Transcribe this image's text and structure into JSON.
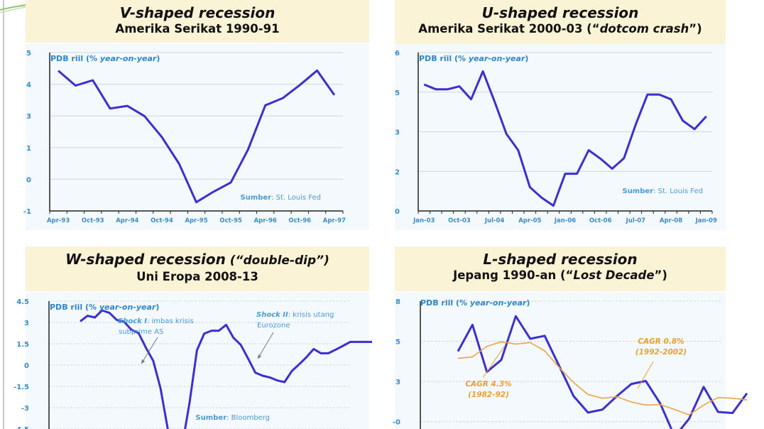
{
  "panels": [
    {
      "title": "V-shaped recession",
      "subtitle": "Amerika Serikat 1990-91"
    },
    {
      "title": "U-shaped recession",
      "subtitle_pre": "Amerika Serikat 2000-03 (“",
      "subtitle_em": "dotcom crash",
      "subtitle_post": "”)"
    },
    {
      "title": "W-shaped recession",
      "title_suffix": " (“double-dip”)",
      "subtitle": "Uni Eropa 2008-13"
    },
    {
      "title": "L-shaped recession",
      "subtitle_pre": "Jepang 1990-an (“",
      "subtitle_em": "Lost Decade",
      "subtitle_post": "”)"
    }
  ],
  "chart_data": [
    {
      "type": "line",
      "ylabel_pre": "PDB riil (% ",
      "ylabel_em": "year-on-year",
      "ylabel_post": ")",
      "ylim": [
        -1,
        5
      ],
      "ytick_labels": [
        "-1",
        "0",
        "1",
        "3",
        "4",
        "5"
      ],
      "categories": [
        "Apr-93",
        "Jul-93",
        "Oct-93",
        "Jan-94",
        "Apr-94",
        "Jul-94",
        "Oct-94",
        "Jan-95",
        "Apr-95",
        "Jul-95",
        "Oct-95",
        "Jan-96",
        "Apr-96",
        "Jul-96",
        "Oct-96",
        "Jan-97",
        "Apr-97"
      ],
      "xtick_labels": [
        "Apr-93",
        "Oct-93",
        "Apr-94",
        "Oct-94",
        "Apr-95",
        "Oct-95",
        "Apr-96",
        "Oct-96",
        "Apr-97"
      ],
      "series": [
        {
          "color": "#3b2fd0",
          "values": [
            4.31,
            3.75,
            3.95,
            2.88,
            2.98,
            2.59,
            1.8,
            0.79,
            -0.67,
            -0.27,
            0.08,
            1.33,
            3.0,
            3.27,
            3.77,
            4.32,
            3.39
          ]
        }
      ],
      "source_label": "Sumber",
      "source": ": St. Louis Fed",
      "grid": true
    },
    {
      "type": "line",
      "ylabel_pre": "PDB riil (% ",
      "ylabel_em": "year-on-year",
      "ylabel_post": ")",
      "ylim": [
        0,
        6
      ],
      "ytick_labels": [
        "0",
        "2",
        "3",
        "5",
        "6"
      ],
      "categories": [
        "Jan-03",
        "Apr-03",
        "Jul-03",
        "Oct-03",
        "Jan-04",
        "Apr-04",
        "Jul-04",
        "Oct-04",
        "Jan-05",
        "Apr-05",
        "Jul-05",
        "Oct-05",
        "Jan-06",
        "Apr-06",
        "Jul-06",
        "Oct-06",
        "Jan-07",
        "Apr-07",
        "Jul-07",
        "Oct-07",
        "Jan-08",
        "Apr-08",
        "Jul-08",
        "Oct-08",
        "Jan-09"
      ],
      "xtick_labels": [
        "Jan-03",
        "Oct-03",
        "Jul-04",
        "Apr-05",
        "Jan-06",
        "Oct-06",
        "Jul-07",
        "Apr-08",
        "Jan-09"
      ],
      "series": [
        {
          "color": "#3b2fd0",
          "values": [
            4.79,
            4.61,
            4.61,
            4.72,
            4.23,
            5.29,
            4.14,
            2.92,
            2.3,
            0.9,
            0.5,
            0.2,
            1.41,
            1.41,
            2.3,
            1.98,
            1.6,
            2.0,
            3.28,
            4.41,
            4.41,
            4.23,
            3.42,
            3.1,
            3.58
          ]
        }
      ],
      "source_label": "Sumber",
      "source": ": St. Louis Fed",
      "grid": true
    },
    {
      "type": "line",
      "ylabel_pre": "PDB riil (% ",
      "ylabel_em": "year-on-year",
      "ylabel_post": ")",
      "ylim": [
        -4.5,
        4.5
      ],
      "ytick_labels": [
        "-4.5",
        "-3",
        "-1.5",
        "0",
        "1.5",
        "3",
        "4.5"
      ],
      "series": [
        {
          "color": "#3b2fd0",
          "values": [
            3.08,
            3.47,
            3.35,
            3.85,
            3.68,
            3.18,
            3.05,
            2.5,
            2.25,
            1.22,
            0.3,
            -1.62,
            -4.5,
            -5.6,
            -5.6,
            -2.6,
            1.05,
            2.22,
            2.42,
            2.42,
            2.83,
            1.92,
            1.42,
            0.47,
            -0.53,
            -0.75,
            -0.87,
            -1.08,
            -1.2,
            -0.42,
            0.05,
            0.55,
            1.13,
            0.83,
            0.83,
            1.08,
            1.35,
            1.63,
            1.63,
            1.63,
            1.63
          ]
        }
      ],
      "annotations": [
        {
          "bold": "Shock I",
          "text": ": imbas krisis",
          "line2": "subprime AS"
        },
        {
          "bold": "Shock II",
          "text": ": krisis utang",
          "line2": "Eurozone"
        }
      ],
      "source_label": "Sumber",
      "source": ": Bloomberg",
      "grid": true
    },
    {
      "type": "line",
      "ylabel_pre": "PDB riil (% ",
      "ylabel_em": "year-on-year",
      "ylabel_post": ")",
      "ylim": [
        0,
        8
      ],
      "ytick_labels": [
        "-0",
        "3",
        "5",
        "8"
      ],
      "series": [
        {
          "color": "#3b2fd0",
          "values": [
            4.67,
            6.43,
            3.3,
            4.1,
            7.0,
            5.5,
            5.7,
            3.7,
            1.7,
            0.6,
            0.8,
            1.7,
            2.5,
            2.7,
            1.2,
            -1.0,
            0.2,
            2.3,
            0.64,
            0.57,
            1.88
          ]
        },
        {
          "color": "#eba347",
          "values": [
            4.2,
            4.3,
            5.0,
            5.3,
            5.15,
            5.25,
            4.7,
            3.6,
            2.6,
            1.8,
            1.55,
            1.65,
            1.3,
            1.1,
            1.13,
            0.8,
            0.45,
            1.1,
            1.6,
            1.55,
            1.44
          ]
        }
      ],
      "annotations": [
        {
          "text": "CAGR 4.3%",
          "line2": "(1982-92)"
        },
        {
          "text": "CAGR 0.8%",
          "line2": "(1992-2002)"
        }
      ],
      "grid": true
    }
  ]
}
